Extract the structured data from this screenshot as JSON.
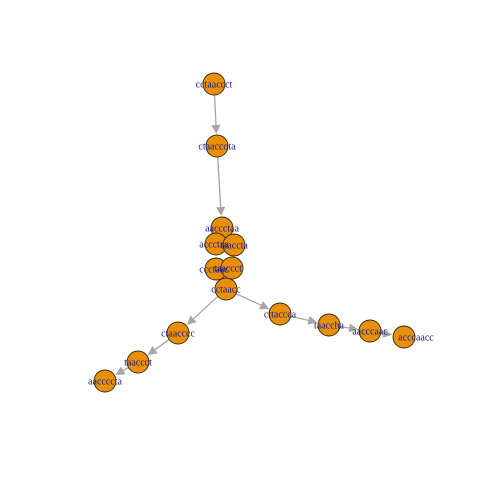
{
  "graph": {
    "colors": {
      "node_fill": "#e8900a",
      "node_stroke": "#3a2a10",
      "edge": "#a6a6a6",
      "label": "#1a1a8c",
      "background": "#ffffff"
    },
    "nodes": [
      {
        "id": "n1",
        "label": "cctaaccct"
      },
      {
        "id": "n2",
        "label": "ctaaccota"
      },
      {
        "id": "n3",
        "label": "aaccctaa"
      },
      {
        "id": "n4",
        "label": "accctaa"
      },
      {
        "id": "n5",
        "label": "taaccta"
      },
      {
        "id": "n6",
        "label": "ccctaac"
      },
      {
        "id": "n7",
        "label": "taaccct"
      },
      {
        "id": "n8",
        "label": "cctaacc"
      },
      {
        "id": "n9",
        "label": "ctaacccc"
      },
      {
        "id": "n10",
        "label": "taaccct"
      },
      {
        "id": "n11",
        "label": "aaccccta"
      },
      {
        "id": "n12",
        "label": "cttaccca"
      },
      {
        "id": "n13",
        "label": "taaccha"
      },
      {
        "id": "n14",
        "label": "aacccaac"
      },
      {
        "id": "n15",
        "label": "acccaacc"
      }
    ],
    "edges": [
      {
        "from": "n1",
        "to": "n2"
      },
      {
        "from": "n2",
        "to": "n3"
      },
      {
        "from": "n8",
        "to": "n9"
      },
      {
        "from": "n9",
        "to": "n10"
      },
      {
        "from": "n10",
        "to": "n11"
      },
      {
        "from": "n8",
        "to": "n12"
      },
      {
        "from": "n12",
        "to": "n13"
      },
      {
        "from": "n13",
        "to": "n14"
      },
      {
        "from": "n14",
        "to": "n15"
      }
    ]
  }
}
